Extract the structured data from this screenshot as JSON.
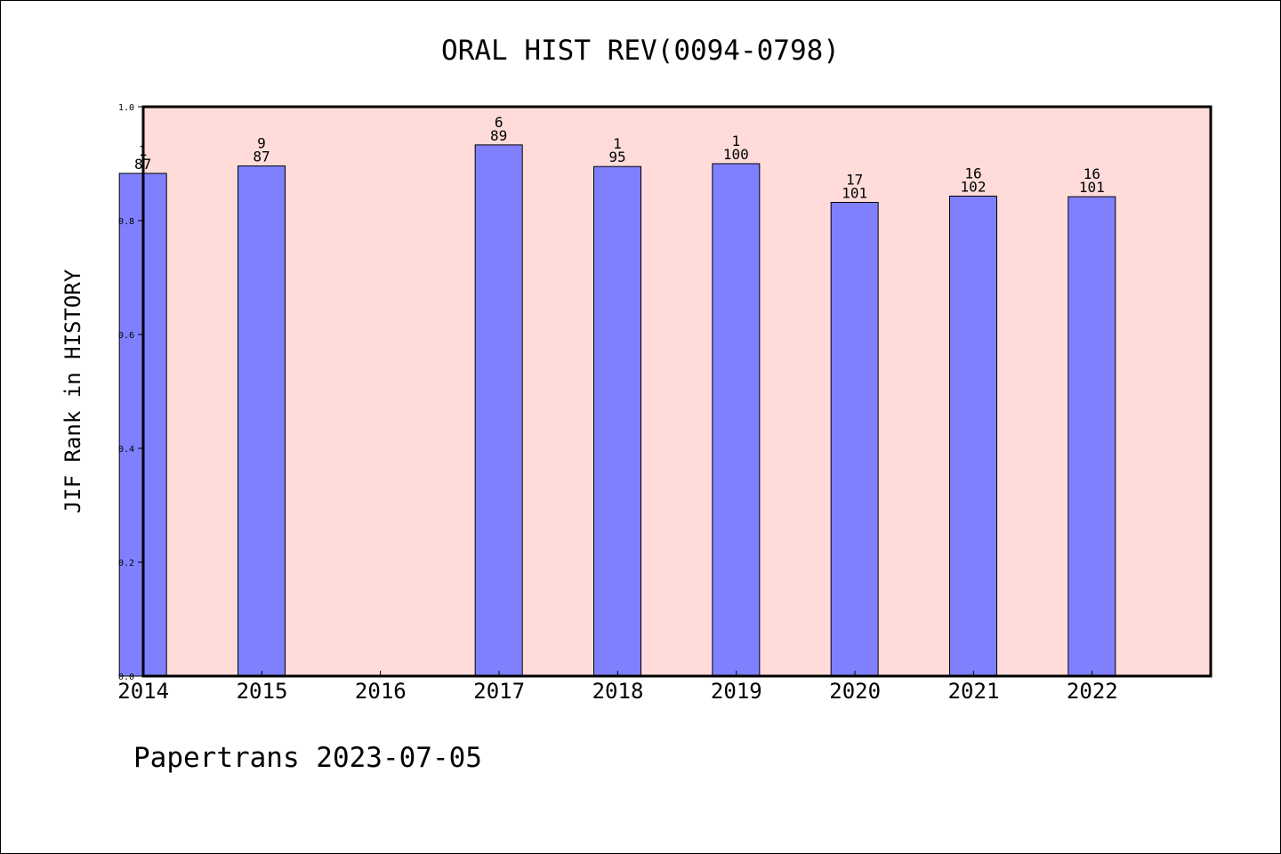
{
  "chart_data": {
    "type": "bar",
    "title": "ORAL HIST REV(0094-0798)",
    "ylabel": "JIF Rank in HISTORY",
    "xlabel": "",
    "ylim": [
      0,
      1.0
    ],
    "yticks": [
      "0.0",
      "0.2",
      "0.4",
      "0.6",
      "0.8",
      "1.0"
    ],
    "categories": [
      "2014",
      "2015",
      "2016",
      "2017",
      "2018",
      "2019",
      "2020",
      "2021",
      "2022"
    ],
    "values": [
      0.883,
      0.896,
      null,
      0.933,
      0.895,
      0.9,
      0.832,
      0.843,
      0.842
    ],
    "rank_labels": [
      "1",
      "9",
      "",
      "6",
      "1",
      "1",
      "17",
      "16",
      "16"
    ],
    "total_labels": [
      "87",
      "87",
      "",
      "89",
      "95",
      "100",
      "101",
      "102",
      "101"
    ],
    "grid": false,
    "colors": {
      "plot_background": "#ffdcda",
      "bar_fill": "#8080ff",
      "bar_stroke": "#000000"
    }
  },
  "footer": "Papertrans 2023-07-05"
}
